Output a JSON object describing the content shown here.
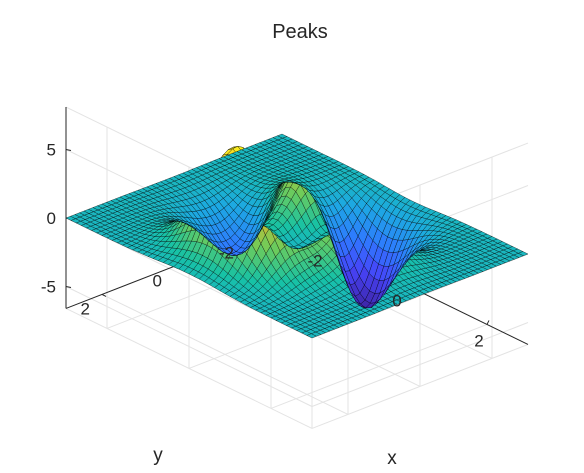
{
  "chart_data": {
    "type": "surface",
    "function": "peaks",
    "title": "Peaks",
    "xlabel": "x",
    "ylabel": "y",
    "zlabel": "",
    "xlim": [
      -3,
      3
    ],
    "ylim": [
      -3,
      3
    ],
    "zlim": [
      -6.6,
      8.1
    ],
    "grid_points": 49,
    "xticks": [
      -2,
      0,
      2
    ],
    "yticks": [
      -2,
      0,
      2
    ],
    "zticks": [
      -5,
      0,
      5
    ],
    "xtick_labels": [
      "-2",
      "0",
      "2"
    ],
    "ytick_labels": [
      "-2",
      "0",
      "2"
    ],
    "ztick_labels": [
      "-5",
      "0",
      "5"
    ],
    "z_max": 8.1,
    "z_min": -6.55,
    "colormap": [
      "#3e26a8",
      "#4743f8",
      "#2f79ff",
      "#1da8e3",
      "#17c2a5",
      "#71cc58",
      "#d8ba2f",
      "#fcce2e",
      "#f9fb15"
    ],
    "edge_color": "#000000",
    "grid": true
  }
}
